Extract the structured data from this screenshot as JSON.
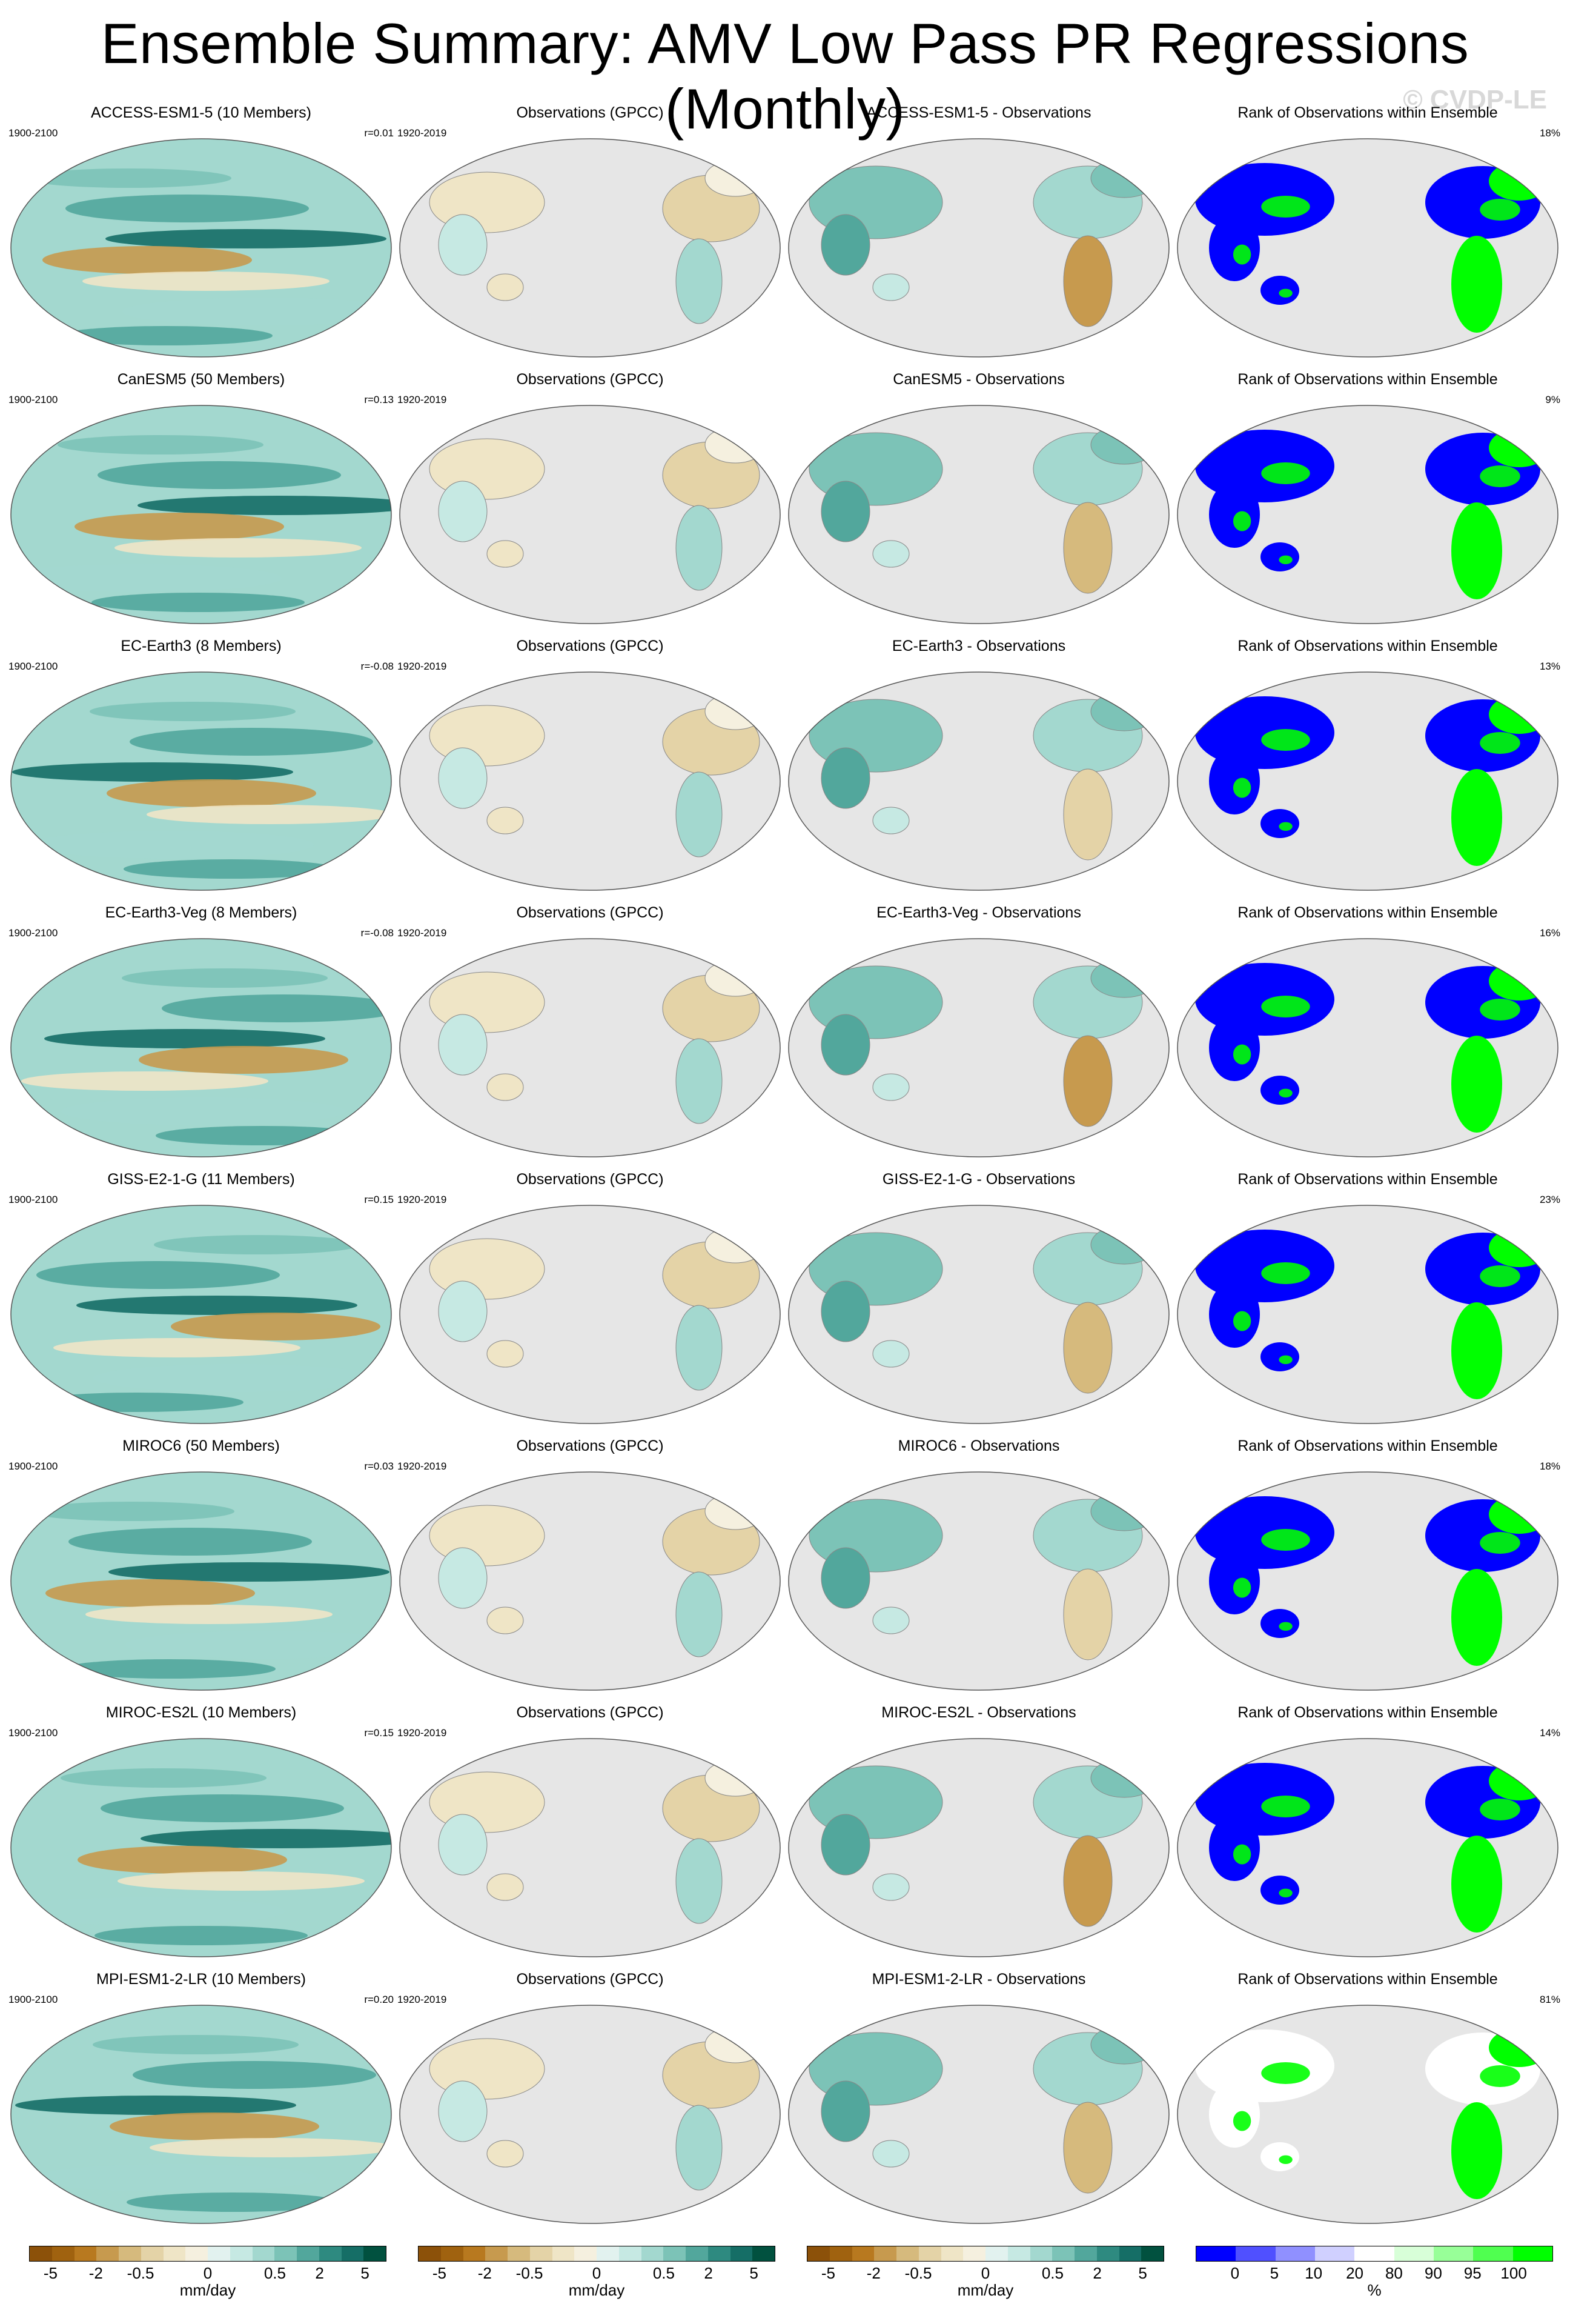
{
  "title": "Ensemble Summary: AMV Low Pass PR Regressions (Monthly)",
  "watermark": "© CVDP-LE",
  "rows": [
    {
      "model": "ACCESS-ESM1-5 (10 Members)",
      "years": "1900-2100",
      "r": "r=0.01",
      "obs": "Observations (GPCC)",
      "obs_years": "1920-2019",
      "diff": "ACCESS-ESM1-5 - Observations",
      "rank": "Rank of Observations within Ensemble",
      "pct": "18%"
    },
    {
      "model": "CanESM5 (50 Members)",
      "years": "1900-2100",
      "r": "r=0.13",
      "obs": "Observations (GPCC)",
      "obs_years": "1920-2019",
      "diff": "CanESM5 - Observations",
      "rank": "Rank of Observations within Ensemble",
      "pct": "9%"
    },
    {
      "model": "EC-Earth3 (8 Members)",
      "years": "1900-2100",
      "r": "r=-0.08",
      "obs": "Observations (GPCC)",
      "obs_years": "1920-2019",
      "diff": "EC-Earth3 - Observations",
      "rank": "Rank of Observations within Ensemble",
      "pct": "13%"
    },
    {
      "model": "EC-Earth3-Veg (8 Members)",
      "years": "1900-2100",
      "r": "r=-0.08",
      "obs": "Observations (GPCC)",
      "obs_years": "1920-2019",
      "diff": "EC-Earth3-Veg - Observations",
      "rank": "Rank of Observations within Ensemble",
      "pct": "16%"
    },
    {
      "model": "GISS-E2-1-G (11 Members)",
      "years": "1900-2100",
      "r": "r=0.15",
      "obs": "Observations (GPCC)",
      "obs_years": "1920-2019",
      "diff": "GISS-E2-1-G - Observations",
      "rank": "Rank of Observations within Ensemble",
      "pct": "23%"
    },
    {
      "model": "MIROC6 (50 Members)",
      "years": "1900-2100",
      "r": "r=0.03",
      "obs": "Observations (GPCC)",
      "obs_years": "1920-2019",
      "diff": "MIROC6 - Observations",
      "rank": "Rank of Observations within Ensemble",
      "pct": "18%"
    },
    {
      "model": "MIROC-ES2L (10 Members)",
      "years": "1900-2100",
      "r": "r=0.15",
      "obs": "Observations (GPCC)",
      "obs_years": "1920-2019",
      "diff": "MIROC-ES2L - Observations",
      "rank": "Rank of Observations within Ensemble",
      "pct": "14%"
    },
    {
      "model": "MPI-ESM1-2-LR (10 Members)",
      "years": "1900-2100",
      "r": "r=0.20",
      "obs": "Observations (GPCC)",
      "obs_years": "1920-2019",
      "diff": "MPI-ESM1-2-LR - Observations",
      "rank": "Rank of Observations within Ensemble",
      "pct": "81%"
    }
  ],
  "colorbars": [
    {
      "ticks": [
        "-5",
        "-2",
        "-0.5",
        "0",
        "0.5",
        "2",
        "5"
      ],
      "unit": "mm/day"
    },
    {
      "ticks": [
        "-5",
        "-2",
        "-0.5",
        "0",
        "0.5",
        "2",
        "5"
      ],
      "unit": "mm/day"
    },
    {
      "ticks": [
        "-5",
        "-2",
        "-0.5",
        "0",
        "0.5",
        "2",
        "5"
      ],
      "unit": "mm/day"
    },
    {
      "ticks": [
        "0",
        "5",
        "10",
        "20",
        "80",
        "90",
        "95",
        "100"
      ],
      "unit": "%"
    }
  ],
  "colors": {
    "brbg": [
      "#8c5109",
      "#a0620f",
      "#b8791f",
      "#c79a4e",
      "#d6ba7d",
      "#e4d3a7",
      "#efe5c6",
      "#f5f0df",
      "#e2f2ef",
      "#c6e9e3",
      "#a3d8cf",
      "#7cc3b7",
      "#52a79c",
      "#2e8a80",
      "#156e66",
      "#01513f"
    ],
    "rank": [
      "#0000ff",
      "#5050ff",
      "#9090ff",
      "#d0d0ff",
      "#ffffff",
      "#d8ffd8",
      "#98ff98",
      "#50ff50",
      "#00ff00"
    ],
    "land_grey": "#e6e6e6"
  }
}
